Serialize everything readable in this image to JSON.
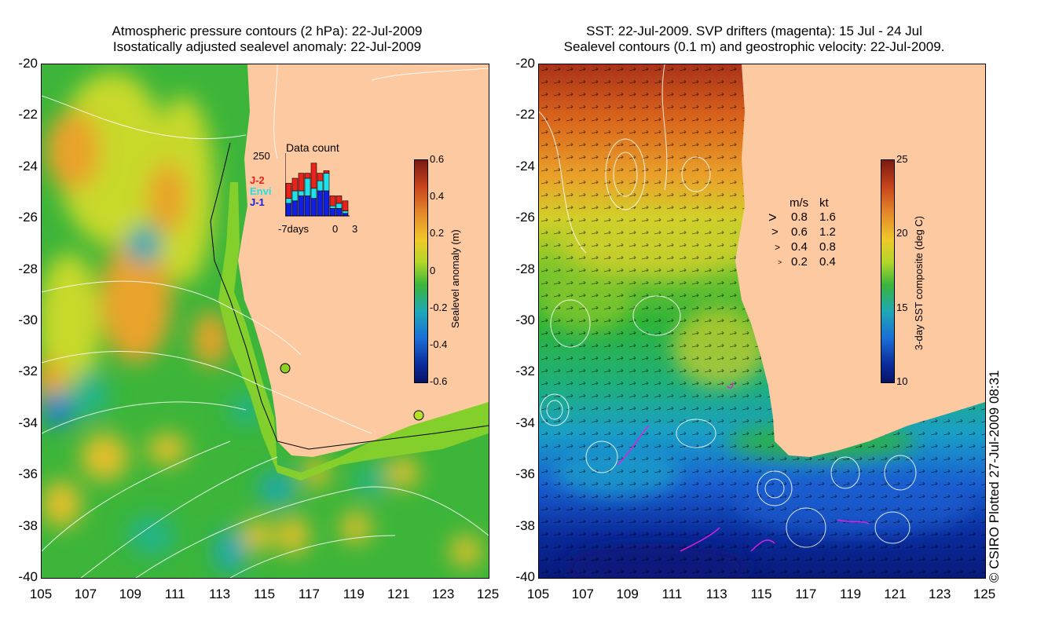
{
  "left_panel": {
    "title_line1": "Atmospheric pressure contours (2 hPa): 22-Jul-2009",
    "title_line2": "Isostatically adjusted sealevel anomaly: 22-Jul-2009",
    "y_ticks": [
      "-20",
      "-22",
      "-24",
      "-26",
      "-28",
      "-30",
      "-32",
      "-34",
      "-36",
      "-38",
      "-40"
    ],
    "x_ticks": [
      "105",
      "107",
      "109",
      "111",
      "113",
      "115",
      "117",
      "119",
      "121",
      "123",
      "125"
    ],
    "colorbar": {
      "label": "Sealevel anomaly (m)",
      "ticks": [
        "0.6",
        "0.4",
        "0.2",
        "0",
        "-0.2",
        "-0.4",
        "-0.6"
      ]
    },
    "inset": {
      "title": "Data count",
      "ymax_label": "250",
      "x_labels": [
        "-7days",
        "0",
        "3"
      ],
      "legend": [
        {
          "name": "J-2",
          "color": "#e8231c"
        },
        {
          "name": "Envi",
          "color": "#20e0ea"
        },
        {
          "name": "J-1",
          "color": "#1020e0"
        }
      ],
      "counts_j2": [
        60,
        50,
        70,
        20,
        100,
        30,
        10,
        40,
        30,
        40
      ],
      "counts_envi": [
        20,
        40,
        20,
        70,
        40,
        40,
        70,
        10,
        20,
        10
      ],
      "counts_j1": [
        50,
        60,
        80,
        80,
        70,
        100,
        100,
        30,
        30,
        10
      ]
    }
  },
  "right_panel": {
    "title_line1": "SST: 22-Jul-2009. SVP drifters (magenta): 15 Jul - 24 Jul",
    "title_line2": "Sealevel contours (0.1 m) and geostrophic velocity: 22-Jul-2009.",
    "y_ticks": [
      "-20",
      "-22",
      "-24",
      "-26",
      "-28",
      "-30",
      "-32",
      "-34",
      "-36",
      "-38",
      "-40"
    ],
    "x_ticks": [
      "105",
      "107",
      "109",
      "111",
      "113",
      "115",
      "117",
      "119",
      "121",
      "123",
      "125"
    ],
    "colorbar": {
      "label": "3-day SST composite (deg C)",
      "ticks": [
        "25",
        "20",
        "15",
        "10"
      ]
    },
    "velocity_legend": {
      "header_ms": "m/s",
      "header_kt": "kt",
      "rows": [
        {
          "ms": "0.8",
          "kt": "1.6"
        },
        {
          "ms": "0.6",
          "kt": "1.2"
        },
        {
          "ms": "0.4",
          "kt": "0.8"
        },
        {
          "ms": "0.2",
          "kt": "0.4"
        }
      ]
    }
  },
  "credit": "© CSIRO Plotted 27-Jul-2009 08:31",
  "colors": {
    "land": "#fdc9a0",
    "ssl_base": "#2fb43a",
    "sst_warm": "#d8621b",
    "sst_cold": "#0a1f96"
  }
}
